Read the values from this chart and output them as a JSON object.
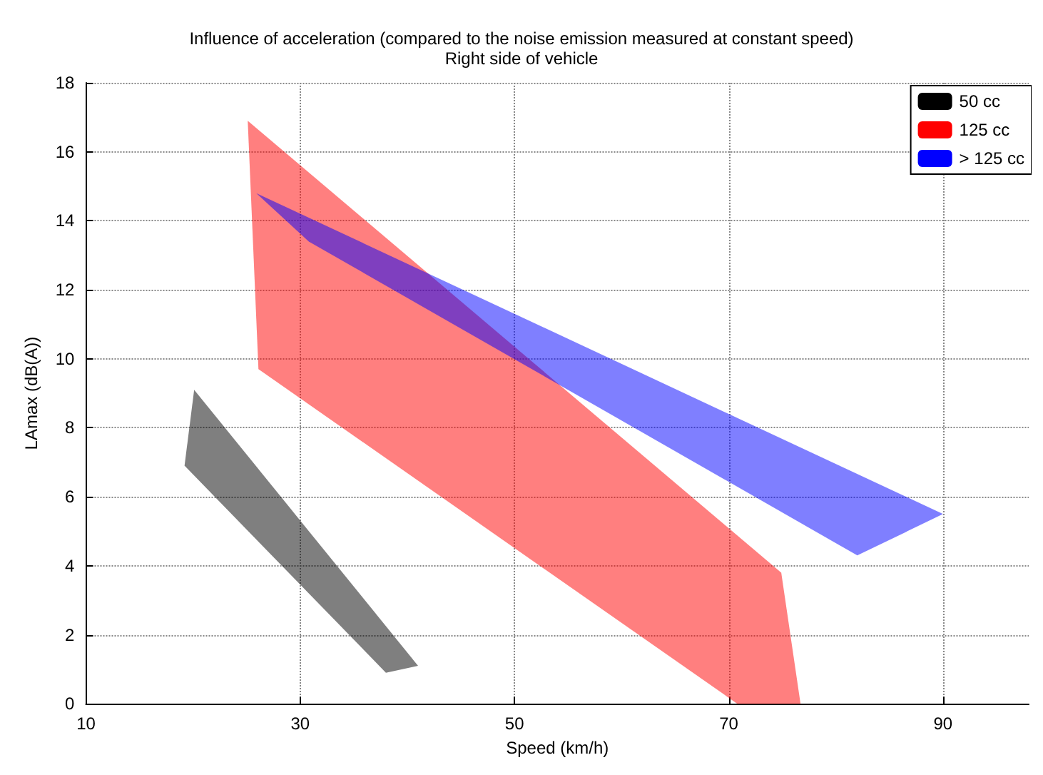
{
  "chart_data": {
    "type": "area",
    "title": "Influence of acceleration (compared to the noise emission measured at constant speed)",
    "subtitle": "Right side of vehicle",
    "xlabel": "Speed (km/h)",
    "ylabel": "LAmax (dB(A))",
    "xlim": [
      10,
      98
    ],
    "xticks": [
      10,
      30,
      50,
      70,
      90
    ],
    "ylim": [
      0,
      18
    ],
    "yticks": [
      0,
      2,
      4,
      6,
      8,
      10,
      12,
      14,
      16,
      18
    ],
    "grid": true,
    "legend": "top right",
    "series": [
      {
        "name": "50 cc",
        "color": "#000000",
        "x": [
          19.2,
          20.1,
          41.0,
          38.0
        ],
        "values": [
          6.9,
          9.1,
          1.1,
          0.9
        ]
      },
      {
        "name": "125 cc",
        "color": "#ff0000",
        "x": [
          25.1,
          74.9,
          76.7,
          70.8,
          26.1
        ],
        "values": [
          16.9,
          3.8,
          0,
          0,
          9.7
        ]
      },
      {
        "name": "> 125 cc",
        "color": "#0000ff",
        "x": [
          25.9,
          90,
          82,
          30.8
        ],
        "values": [
          14.8,
          5.5,
          4.3,
          13.4
        ]
      }
    ]
  }
}
